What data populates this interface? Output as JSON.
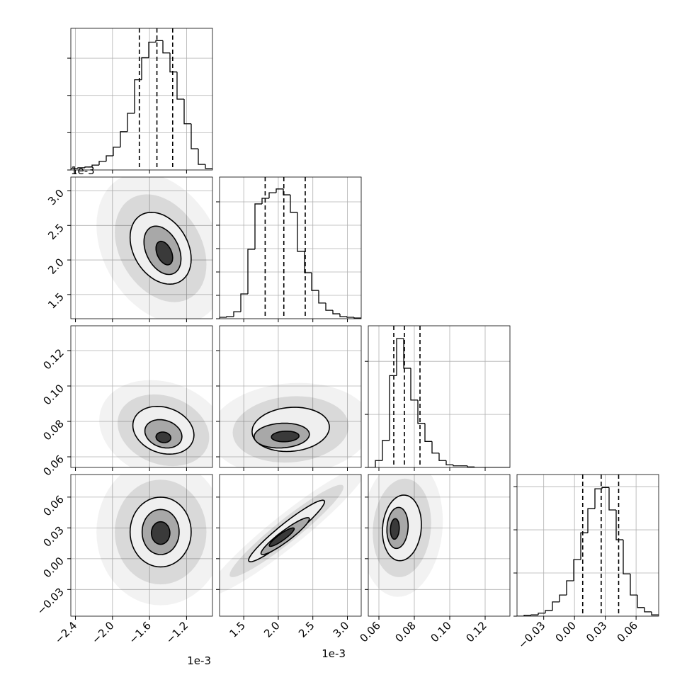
{
  "chart_data": {
    "type": "corner",
    "grid": true,
    "parameters": [
      {
        "lim": [
          -2.45,
          -0.92
        ],
        "offset": "1e-3",
        "ticks": [
          {
            "value": -2.4,
            "label": "−2.4"
          },
          {
            "value": -2.0,
            "label": "−2.0"
          },
          {
            "value": -1.6,
            "label": "−1.6"
          },
          {
            "value": -1.2,
            "label": "−1.2"
          }
        ],
        "quantiles": [
          -1.71,
          -1.52,
          -1.35
        ],
        "bins": [
          -2.45,
          -2.3735,
          -2.297,
          -2.2205,
          -2.144,
          -2.0675,
          -1.991,
          -1.9145,
          -1.838,
          -1.7615,
          -1.685,
          -1.6085,
          -1.532,
          -1.4555,
          -1.379,
          -1.3025,
          -1.226,
          -1.1495,
          -1.073,
          -0.9965,
          -0.92
        ],
        "counts": [
          40,
          60,
          80,
          130,
          230,
          380,
          610,
          1030,
          1520,
          2420,
          3010,
          3430,
          3470,
          3140,
          2630,
          1900,
          1240,
          570,
          150,
          40
        ],
        "ylim": [
          0,
          3800
        ],
        "yticks": [
          0,
          1000,
          2000,
          3000
        ]
      },
      {
        "lim": [
          1.15,
          3.2
        ],
        "offset": "1e-3",
        "ticks": [
          1.5,
          {
            "value": 2,
            "label": "2.0"
          },
          2.5,
          {
            "value": 3,
            "label": "3.0"
          }
        ],
        "quantiles": [
          1.81,
          2.08,
          2.39
        ],
        "bins": [
          1.15,
          1.2525,
          1.355,
          1.4575,
          1.56,
          1.6625,
          1.765,
          1.8675,
          1.97,
          2.0725,
          2.175,
          2.2775,
          2.38,
          2.4825,
          2.585,
          2.6875,
          2.79,
          2.8925,
          2.995,
          3.0975,
          3.2
        ],
        "counts": [
          60,
          90,
          300,
          1060,
          2970,
          4910,
          5150,
          5390,
          5550,
          5300,
          4550,
          2880,
          1970,
          1210,
          670,
          360,
          210,
          90,
          60,
          30
        ],
        "ylim": [
          0,
          6060
        ],
        "yticks": [
          0,
          1000,
          2000,
          3000,
          4000,
          5000
        ]
      },
      {
        "lim": [
          0.054,
          0.134
        ],
        "ticks": [
          0.06,
          0.08,
          {
            "value": 0.1,
            "label": "0.10"
          },
          0.12
        ],
        "quantiles": [
          0.0684,
          0.0744,
          0.0832
        ],
        "bins": [
          0.054,
          0.058,
          0.062,
          0.066,
          0.07,
          0.074,
          0.078,
          0.082,
          0.086,
          0.09,
          0.094,
          0.098,
          0.102,
          0.106,
          0.11,
          0.114,
          0.118,
          0.122,
          0.126,
          0.13,
          0.134
        ],
        "counts": [
          0,
          130,
          510,
          1730,
          2430,
          1870,
          1270,
          830,
          490,
          270,
          130,
          50,
          30,
          30,
          10,
          0,
          0,
          0,
          0,
          0
        ],
        "ylim": [
          0,
          2670
        ],
        "yticks": [
          0,
          1000,
          2000
        ]
      },
      {
        "lim": [
          -0.056,
          0.082
        ],
        "ticks": [
          {
            "value": -0.03,
            "label": "−0.03"
          },
          {
            "value": 0,
            "label": "0.00"
          },
          0.03,
          0.06
        ],
        "quantiles": [
          0.008,
          0.026,
          0.043
        ],
        "bins": [
          -0.056,
          -0.0491,
          -0.0422,
          -0.0353,
          -0.0284,
          -0.0215,
          -0.0146,
          -0.0077,
          -0.0008,
          0.0061,
          0.013,
          0.0199,
          0.0268,
          0.0337,
          0.0406,
          0.0475,
          0.0544,
          0.0613,
          0.0682,
          0.0751,
          0.082
        ],
        "counts": [
          0,
          20,
          30,
          70,
          130,
          330,
          490,
          820,
          1310,
          1930,
          2490,
          2950,
          2980,
          2460,
          1770,
          980,
          490,
          200,
          100,
          30
        ],
        "ylim": [
          0,
          3280
        ],
        "yticks": [
          0,
          1000,
          2000,
          3000
        ]
      }
    ],
    "pairs": [
      [
        {
          "contours": [
            {
              "x": -1.48,
              "y": 2.17,
              "rx": 0.33,
              "ry": 0.52,
              "rho": -0.3
            },
            {
              "x": -1.46,
              "y": 2.14,
              "rx": 0.2,
              "ry": 0.35,
              "rho": -0.35
            },
            {
              "x": -1.44,
              "y": 2.1,
              "rx": 0.09,
              "ry": 0.17,
              "rho": -0.4
            }
          ]
        }
      ],
      [
        {
          "contours": [
            {
              "x": -1.45,
              "y": 0.075,
              "rx": 0.33,
              "ry": 0.0135,
              "rho": -0.2
            },
            {
              "x": -1.45,
              "y": 0.073,
              "rx": 0.2,
              "ry": 0.008,
              "rho": -0.2
            },
            {
              "x": -1.45,
              "y": 0.071,
              "rx": 0.08,
              "ry": 0.003,
              "rho": -0.1
            }
          ]
        },
        {
          "contours": [
            {
              "x": 2.18,
              "y": 0.0755,
              "rx": 0.56,
              "ry": 0.0125,
              "rho": 0.1
            },
            {
              "x": 2.05,
              "y": 0.072,
              "rx": 0.4,
              "ry": 0.007,
              "rho": 0.1
            },
            {
              "x": 2.1,
              "y": 0.0715,
              "rx": 0.2,
              "ry": 0.003,
              "rho": 0.1
            }
          ]
        }
      ],
      [
        {
          "contours": [
            {
              "x": -1.48,
              "y": 0.026,
              "rx": 0.33,
              "ry": 0.034,
              "rho": 0.0
            },
            {
              "x": -1.48,
              "y": 0.026,
              "rx": 0.2,
              "ry": 0.022,
              "rho": 0.0
            },
            {
              "x": -1.48,
              "y": 0.025,
              "rx": 0.1,
              "ry": 0.011,
              "rho": 0.0
            }
          ]
        },
        {
          "contours": [
            {
              "x": 2.12,
              "y": 0.027,
              "rx": 0.55,
              "ry": 0.03,
              "rho": 0.95
            },
            {
              "x": 2.1,
              "y": 0.022,
              "rx": 0.35,
              "ry": 0.018,
              "rho": 0.93
            },
            {
              "x": 2.05,
              "y": 0.021,
              "rx": 0.18,
              "ry": 0.009,
              "rho": 0.9
            }
          ]
        },
        {
          "contours": [
            {
              "x": 0.073,
              "y": 0.03,
              "rx": 0.011,
              "ry": 0.032,
              "rho": 0.1
            },
            {
              "x": 0.0705,
              "y": 0.03,
              "rx": 0.006,
              "ry": 0.02,
              "rho": 0.1
            },
            {
              "x": 0.069,
              "y": 0.029,
              "rx": 0.0025,
              "ry": 0.01,
              "rho": 0.1
            }
          ]
        }
      ]
    ]
  }
}
